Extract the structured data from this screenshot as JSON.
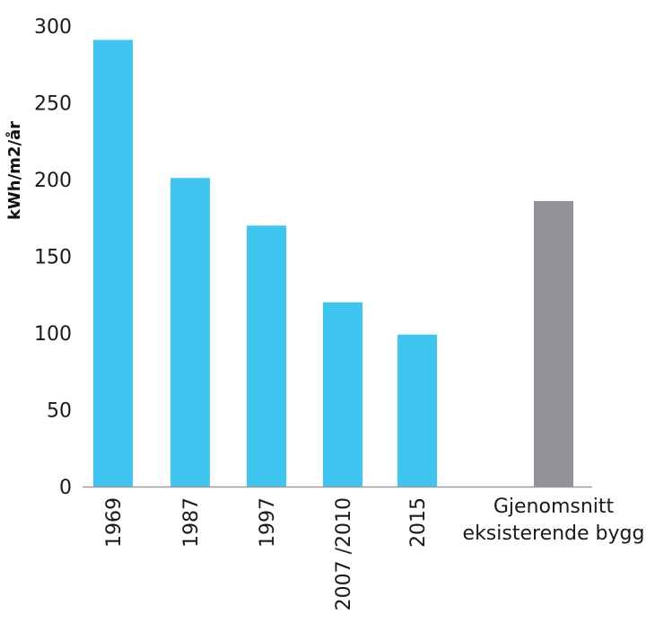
{
  "chart_data": {
    "type": "bar",
    "title": "",
    "xlabel": "",
    "ylabel": "kWh/m2/år",
    "ylim": [
      0,
      300
    ],
    "yticks": [
      0,
      50,
      100,
      150,
      200,
      250,
      300
    ],
    "grid": false,
    "legend": "none",
    "categories": [
      {
        "label": "1969",
        "value": 291,
        "color": "#3ec6f0",
        "orientation": "vertical"
      },
      {
        "label": "1987",
        "value": 201,
        "color": "#3ec6f0",
        "orientation": "vertical"
      },
      {
        "label": "1997",
        "value": 170,
        "color": "#3ec6f0",
        "orientation": "vertical"
      },
      {
        "label": "2007 /2010",
        "value": 120,
        "color": "#3ec6f0",
        "orientation": "vertical"
      },
      {
        "label": "2015",
        "value": 99,
        "color": "#3ec6f0",
        "orientation": "vertical"
      },
      {
        "label": "",
        "value": null,
        "color": "",
        "orientation": "vertical"
      },
      {
        "label_lines": [
          "Gjenomsnitt",
          "eksisterende bygg"
        ],
        "value": 186,
        "color": "#929397",
        "orientation": "horizontal"
      }
    ]
  }
}
